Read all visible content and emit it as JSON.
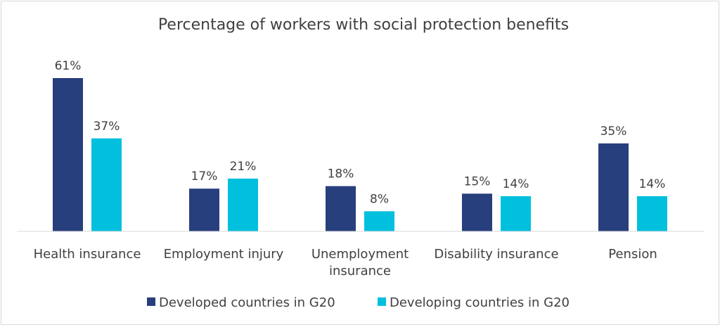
{
  "chart_data": {
    "type": "bar",
    "title": "Percentage of workers with social protection benefits",
    "xlabel": "",
    "ylabel": "",
    "ylim": [
      0,
      70
    ],
    "grid": false,
    "legend_position": "bottom",
    "categories": [
      [
        "Health insurance"
      ],
      [
        "Employment injury"
      ],
      [
        "Unemployment",
        "insurance"
      ],
      [
        "Disability insurance"
      ],
      [
        "Pension"
      ]
    ],
    "series": [
      {
        "name": "Developed countries in G20",
        "color": "#283f7e",
        "values": [
          61,
          17,
          18,
          15,
          35
        ],
        "labels": [
          "61%",
          "17%",
          "18%",
          "15%",
          "35%"
        ]
      },
      {
        "name": "Developing countries in G20",
        "color": "#00c0de",
        "values": [
          37,
          21,
          8,
          14,
          14
        ],
        "labels": [
          "37%",
          "21%",
          "8%",
          "14%",
          "14%"
        ]
      }
    ]
  }
}
